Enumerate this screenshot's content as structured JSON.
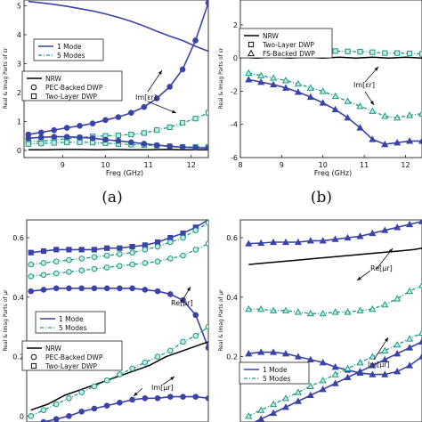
{
  "chart_data": [
    {
      "type": "line",
      "panel_label": "(a)",
      "xlabel": "Freq (GHz)",
      "ylabel": "Real & Imag Parts of εr",
      "x_ticks": [
        "9",
        "10",
        "11",
        "12"
      ],
      "y_ticks": [
        "0",
        "1",
        "2",
        "3",
        "4",
        "5"
      ],
      "xlim": [
        8.1,
        12.4
      ],
      "ylim": [
        -0.25,
        5.2
      ],
      "legends": [
        {
          "entries": [
            {
              "label": "1 Mode",
              "series": 0
            },
            {
              "label": "5 Modes",
              "series": 1
            }
          ]
        },
        {
          "entries": [
            {
              "label": "NRW",
              "series": 2
            },
            {
              "label": "PEC-Backed DWP",
              "series": 3
            },
            {
              "label": "Two-Layer DWP",
              "series": 4
            }
          ]
        }
      ],
      "annotations": [
        {
          "text": "Im[εr]"
        }
      ],
      "series": [
        {
          "style": "1mode",
          "x": [
            8.2,
            8.5,
            8.8,
            9.1,
            9.4,
            9.7,
            10.0,
            10.3,
            10.6,
            10.9,
            11.2,
            11.5,
            11.8,
            12.1,
            12.4
          ],
          "y": [
            5.15,
            5.1,
            5.05,
            4.98,
            4.9,
            4.82,
            4.72,
            4.6,
            4.46,
            4.3,
            4.12,
            3.95,
            3.8,
            3.6,
            3.43
          ]
        },
        {
          "style": "5modes",
          "x": [
            8.2,
            8.5,
            8.8,
            9.1,
            9.4,
            9.7,
            10.0,
            10.3,
            10.6,
            10.9,
            11.2,
            11.5,
            11.8,
            12.1,
            12.4
          ],
          "y": [
            0.3,
            0.32,
            0.36,
            0.4,
            0.44,
            0.48,
            0.5,
            0.52,
            0.55,
            0.6,
            0.7,
            0.8,
            0.95,
            1.1,
            1.3
          ]
        },
        {
          "style": "nrw",
          "x": [
            8.2,
            8.6,
            9.0,
            9.4,
            9.8,
            10.2,
            10.6,
            11.0,
            11.4,
            11.8,
            12.2,
            12.4
          ],
          "y": [
            0.02,
            0.02,
            0.03,
            0.03,
            0.02,
            0.03,
            0.02,
            0.02,
            0.03,
            0.02,
            0.02,
            0.02
          ]
        },
        {
          "style": "1mode",
          "x": [
            8.2,
            8.5,
            8.8,
            9.1,
            9.4,
            9.7,
            10.0,
            10.3,
            10.6,
            10.9,
            11.2,
            11.5,
            11.8,
            12.1,
            12.4
          ],
          "y": [
            0.55,
            0.62,
            0.7,
            0.78,
            0.85,
            0.93,
            1.05,
            1.15,
            1.3,
            1.5,
            1.8,
            2.2,
            2.8,
            3.8,
            5.1
          ]
        },
        {
          "style": "5modes",
          "x": [
            8.2,
            8.5,
            8.8,
            9.1,
            9.4,
            9.7,
            10.0,
            10.3,
            10.6,
            10.9,
            11.2,
            11.5,
            11.8,
            12.1,
            12.4
          ],
          "y": [
            0.22,
            0.24,
            0.26,
            0.28,
            0.28,
            0.27,
            0.25,
            0.22,
            0.2,
            0.18,
            0.16,
            0.14,
            0.12,
            0.12,
            0.12
          ]
        },
        {
          "style": "1mode",
          "x": [
            8.2,
            8.5,
            8.8,
            9.1,
            9.4,
            9.7,
            10.0,
            10.3,
            10.6,
            10.9,
            11.2,
            11.5,
            11.8,
            12.1,
            12.4
          ],
          "y": [
            0.42,
            0.45,
            0.47,
            0.47,
            0.45,
            0.42,
            0.37,
            0.33,
            0.28,
            0.23,
            0.18,
            0.14,
            0.11,
            0.09,
            0.08
          ]
        }
      ]
    },
    {
      "type": "line",
      "panel_label": "(b)",
      "xlabel": "Freq (GHz)",
      "ylabel": "Real & Imag Parts of εr",
      "x_ticks": [
        "8",
        "9",
        "10",
        "11",
        "12"
      ],
      "y_ticks": [
        "-6",
        "-4",
        "-2",
        "0",
        "2"
      ],
      "xlim": [
        8.0,
        12.4
      ],
      "ylim": [
        -6,
        3.5
      ],
      "legends": [
        {
          "entries": [
            {
              "label": "NRW",
              "series": 0
            },
            {
              "label": "Two-Layer DWP",
              "series": 1
            },
            {
              "label": "FS-Backed DWP",
              "series": 2
            }
          ]
        }
      ],
      "annotations": [
        {
          "text": "Im[εr]"
        }
      ],
      "series": [
        {
          "style": "nrw",
          "x": [
            8.0,
            8.4,
            8.8,
            9.2,
            9.6,
            10.0,
            10.4,
            10.8,
            11.2,
            11.6,
            12.0,
            12.4
          ],
          "y": [
            0.05,
            0.0,
            0.05,
            0.0,
            0.05,
            0.0,
            0.05,
            0.0,
            0.05,
            0.0,
            0.05,
            0.0
          ]
        },
        {
          "style": "5modes",
          "x": [
            8.2,
            8.5,
            8.8,
            9.1,
            9.4,
            9.7,
            10.0,
            10.3,
            10.6,
            10.9,
            11.2,
            11.5,
            11.8,
            12.1,
            12.4
          ],
          "y": [
            0.45,
            0.45,
            0.48,
            0.5,
            0.48,
            0.5,
            0.45,
            0.42,
            0.4,
            0.38,
            0.35,
            0.3,
            0.3,
            0.28,
            0.25
          ]
        },
        {
          "style": "5modes",
          "x": [
            8.2,
            8.5,
            8.8,
            9.1,
            9.4,
            9.7,
            10.0,
            10.3,
            10.6,
            10.9,
            11.2,
            11.5,
            11.8,
            12.1,
            12.4
          ],
          "y": [
            -0.9,
            -1.05,
            -1.2,
            -1.35,
            -1.55,
            -1.8,
            -2.0,
            -2.3,
            -2.6,
            -2.9,
            -3.2,
            -3.5,
            -3.6,
            -3.45,
            -3.35
          ]
        },
        {
          "style": "1mode",
          "x": [
            8.2,
            8.5,
            8.8,
            9.1,
            9.4,
            9.7,
            10.0,
            10.3,
            10.6,
            10.9,
            11.2,
            11.5,
            11.8,
            12.1,
            12.4
          ],
          "y": [
            -1.3,
            -1.45,
            -1.6,
            -1.8,
            -2.05,
            -2.35,
            -2.7,
            -3.1,
            -3.6,
            -4.2,
            -4.9,
            -5.2,
            -5.1,
            -5.0,
            -5.0
          ]
        }
      ]
    },
    {
      "type": "line",
      "xlabel": "",
      "ylabel": "Real & Imag Parts of μr",
      "x_ticks": [],
      "y_ticks": [
        "0",
        "0.2",
        "0.4",
        "0.6"
      ],
      "xlim": [
        8.1,
        12.4
      ],
      "ylim": [
        -0.02,
        0.66
      ],
      "legends": [
        {
          "entries": [
            {
              "label": "1 Mode",
              "series": 0
            },
            {
              "label": "5 Modes",
              "series": 1
            }
          ]
        },
        {
          "entries": [
            {
              "label": "NRW",
              "series": 2
            },
            {
              "label": "PEC-Backed DWP",
              "series": 3
            },
            {
              "label": "Two-Layer DWP",
              "series": 4
            }
          ]
        }
      ],
      "annotations": [
        {
          "text": "Re[μr]"
        },
        {
          "text": "Im[μr]"
        }
      ],
      "series": [
        {
          "style": "1mode",
          "x": [
            8.2,
            8.5,
            8.8,
            9.1,
            9.4,
            9.7,
            10.0,
            10.3,
            10.6,
            10.9,
            11.2,
            11.5,
            11.8,
            12.1,
            12.4
          ],
          "y": [
            0.42,
            0.425,
            0.43,
            0.43,
            0.43,
            0.43,
            0.43,
            0.43,
            0.43,
            0.425,
            0.42,
            0.41,
            0.39,
            0.34,
            0.23
          ]
        },
        {
          "style": "5modes",
          "x": [
            8.2,
            8.5,
            8.8,
            9.1,
            9.4,
            9.7,
            10.0,
            10.3,
            10.6,
            10.9,
            11.2,
            11.5,
            11.8,
            12.1,
            12.4
          ],
          "y": [
            0.47,
            0.475,
            0.48,
            0.485,
            0.49,
            0.495,
            0.5,
            0.505,
            0.51,
            0.515,
            0.52,
            0.53,
            0.54,
            0.56,
            0.58
          ]
        },
        {
          "style": "nrw",
          "x": [
            8.2,
            8.6,
            9.0,
            9.4,
            9.8,
            10.2,
            10.6,
            11.0,
            11.4,
            11.8,
            12.2,
            12.4
          ],
          "y": [
            0.02,
            0.04,
            0.07,
            0.09,
            0.11,
            0.13,
            0.15,
            0.17,
            0.2,
            0.22,
            0.24,
            0.25
          ]
        },
        {
          "style": "1mode",
          "x": [
            8.2,
            8.5,
            8.8,
            9.1,
            9.4,
            9.7,
            10.0,
            10.3,
            10.6,
            10.9,
            11.2,
            11.5,
            11.8,
            12.1,
            12.4
          ],
          "y": [
            0.55,
            0.555,
            0.56,
            0.56,
            0.56,
            0.56,
            0.565,
            0.565,
            0.57,
            0.575,
            0.585,
            0.6,
            0.615,
            0.635,
            0.66
          ]
        },
        {
          "style": "5modes",
          "x": [
            8.2,
            8.5,
            8.8,
            9.1,
            9.4,
            9.7,
            10.0,
            10.3,
            10.6,
            10.9,
            11.2,
            11.5,
            11.8,
            12.1,
            12.4
          ],
          "y": [
            0.51,
            0.515,
            0.52,
            0.525,
            0.53,
            0.535,
            0.54,
            0.545,
            0.55,
            0.56,
            0.57,
            0.585,
            0.6,
            0.625,
            0.65
          ]
        },
        {
          "style": "1mode",
          "x": [
            8.2,
            8.5,
            8.8,
            9.1,
            9.4,
            9.7,
            10.0,
            10.3,
            10.6,
            10.9,
            11.2,
            11.5,
            11.8,
            12.1,
            12.4
          ],
          "y": [
            -0.03,
            -0.02,
            -0.01,
            0.0,
            0.015,
            0.025,
            0.035,
            0.045,
            0.055,
            0.06,
            0.06,
            0.065,
            0.065,
            0.065,
            0.06
          ]
        },
        {
          "style": "5modes",
          "x": [
            8.2,
            8.5,
            8.8,
            9.1,
            9.4,
            9.7,
            10.0,
            10.3,
            10.6,
            10.9,
            11.2,
            11.5,
            11.8,
            12.1,
            12.4
          ],
          "y": [
            0.0,
            0.02,
            0.04,
            0.06,
            0.08,
            0.1,
            0.12,
            0.14,
            0.16,
            0.18,
            0.2,
            0.22,
            0.25,
            0.27,
            0.3
          ]
        }
      ]
    },
    {
      "type": "line",
      "xlabel": "",
      "ylabel": "Real & Imag Parts of μr",
      "x_ticks": [],
      "y_ticks": [
        "0.2",
        "0.4",
        "0.6"
      ],
      "xlim": [
        8.0,
        12.4
      ],
      "ylim": [
        -0.02,
        0.66
      ],
      "legends": [
        {
          "entries": [
            {
              "label": "1 Mode",
              "series": 0
            },
            {
              "label": "5 Modes",
              "series": 1
            }
          ]
        }
      ],
      "annotations": [
        {
          "text": "Re[μr]"
        },
        {
          "text": "Im[μr]"
        }
      ],
      "series": [
        {
          "style": "1mode",
          "x": [
            8.2,
            8.5,
            8.8,
            9.1,
            9.4,
            9.7,
            10.0,
            10.3,
            10.6,
            10.9,
            11.2,
            11.5,
            11.8,
            12.1,
            12.4
          ],
          "y": [
            0.58,
            0.582,
            0.585,
            0.585,
            0.585,
            0.59,
            0.59,
            0.595,
            0.6,
            0.605,
            0.615,
            0.625,
            0.635,
            0.645,
            0.655
          ]
        },
        {
          "style": "5modes",
          "x": [
            8.2,
            8.5,
            8.8,
            9.1,
            9.4,
            9.7,
            10.0,
            10.3,
            10.6,
            10.9,
            11.2,
            11.5,
            11.8,
            12.1,
            12.4
          ],
          "y": [
            0.36,
            0.36,
            0.355,
            0.355,
            0.35,
            0.345,
            0.345,
            0.35,
            0.35,
            0.355,
            0.36,
            0.375,
            0.395,
            0.42,
            0.44
          ]
        },
        {
          "style": "nrw",
          "x": [
            8.2,
            8.6,
            9.0,
            9.4,
            9.8,
            10.2,
            10.6,
            11.0,
            11.4,
            11.8,
            12.2,
            12.4
          ],
          "y": [
            0.51,
            0.515,
            0.52,
            0.525,
            0.53,
            0.535,
            0.54,
            0.545,
            0.55,
            0.555,
            0.56,
            0.565
          ]
        },
        {
          "style": "1mode",
          "x": [
            8.2,
            8.5,
            8.8,
            9.1,
            9.4,
            9.7,
            10.0,
            10.3,
            10.6,
            10.9,
            11.2,
            11.5,
            11.8,
            12.1,
            12.4
          ],
          "y": [
            0.21,
            0.215,
            0.215,
            0.21,
            0.2,
            0.19,
            0.18,
            0.165,
            0.155,
            0.145,
            0.14,
            0.14,
            0.15,
            0.17,
            0.2
          ]
        },
        {
          "style": "1mode",
          "x": [
            8.2,
            8.5,
            8.8,
            9.1,
            9.4,
            9.7,
            10.0,
            10.3,
            10.6,
            10.9,
            11.2,
            11.5,
            11.8,
            12.1,
            12.4
          ],
          "y": [
            -0.03,
            -0.01,
            0.01,
            0.03,
            0.05,
            0.07,
            0.09,
            0.11,
            0.13,
            0.15,
            0.17,
            0.19,
            0.21,
            0.23,
            0.25
          ]
        },
        {
          "style": "5modes",
          "x": [
            8.2,
            8.5,
            8.8,
            9.1,
            9.4,
            9.7,
            10.0,
            10.3,
            10.6,
            10.9,
            11.2,
            11.5,
            11.8,
            12.1,
            12.4
          ],
          "y": [
            0.0,
            0.02,
            0.04,
            0.06,
            0.08,
            0.1,
            0.12,
            0.14,
            0.16,
            0.18,
            0.2,
            0.22,
            0.24,
            0.26,
            0.28
          ]
        }
      ]
    }
  ],
  "colors": {
    "one_mode": "#3a43a6",
    "five_modes": "#1a9a84",
    "nrw": "#000000",
    "axis": "#222222"
  }
}
